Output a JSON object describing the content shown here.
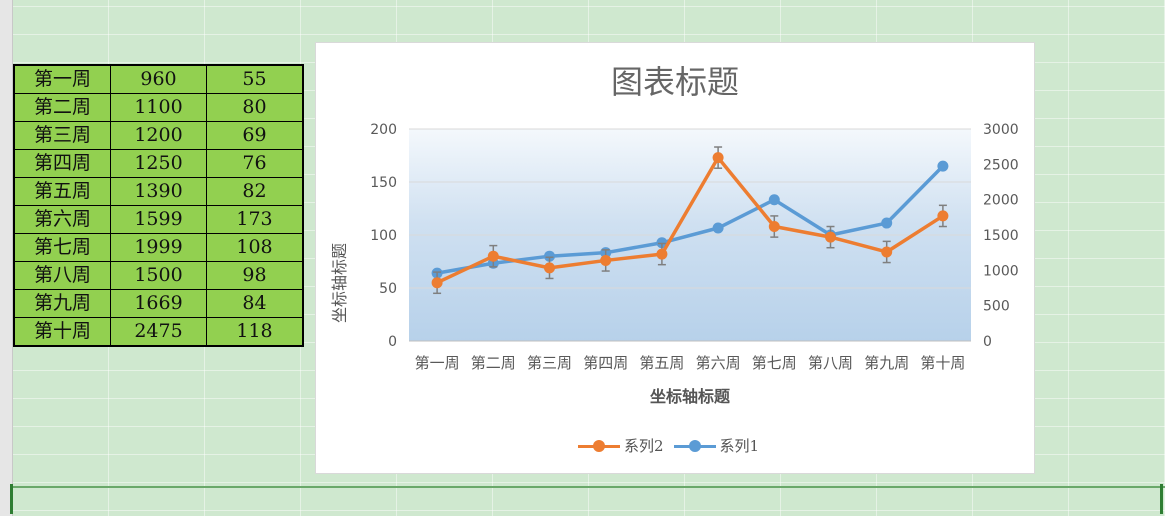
{
  "table": {
    "rows": [
      [
        "第一周",
        "960",
        "55"
      ],
      [
        "第二周",
        "1100",
        "80"
      ],
      [
        "第三周",
        "1200",
        "69"
      ],
      [
        "第四周",
        "1250",
        "76"
      ],
      [
        "第五周",
        "1390",
        "82"
      ],
      [
        "第六周",
        "1599",
        "173"
      ],
      [
        "第七周",
        "1999",
        "108"
      ],
      [
        "第八周",
        "1500",
        "98"
      ],
      [
        "第九周",
        "1669",
        "84"
      ],
      [
        "第十周",
        "2475",
        "118"
      ]
    ]
  },
  "chart_data": {
    "type": "line",
    "title": "图表标题",
    "xlabel": "坐标轴标题",
    "ylabel": "坐标轴标题",
    "categories": [
      "第一周",
      "第二周",
      "第三周",
      "第四周",
      "第五周",
      "第六周",
      "第七周",
      "第八周",
      "第九周",
      "第十周"
    ],
    "ylim": [
      0,
      200
    ],
    "y_ticks": [
      0,
      50,
      100,
      150,
      200
    ],
    "y2lim": [
      0,
      3000
    ],
    "y2_ticks": [
      0,
      500,
      1000,
      1500,
      2000,
      2500,
      3000
    ],
    "grid": true,
    "legend_position": "bottom",
    "error_bars": true,
    "series": [
      {
        "name": "系列2",
        "axis": "primary",
        "color": "#ed7d31",
        "values": [
          55,
          80,
          69,
          76,
          82,
          173,
          108,
          98,
          84,
          118
        ],
        "error": [
          10,
          10,
          10,
          10,
          10,
          10,
          10,
          10,
          10,
          10
        ]
      },
      {
        "name": "系列1",
        "axis": "secondary",
        "color": "#5b9bd5",
        "values": [
          960,
          1100,
          1200,
          1250,
          1390,
          1599,
          1999,
          1500,
          1669,
          2475
        ]
      }
    ]
  }
}
